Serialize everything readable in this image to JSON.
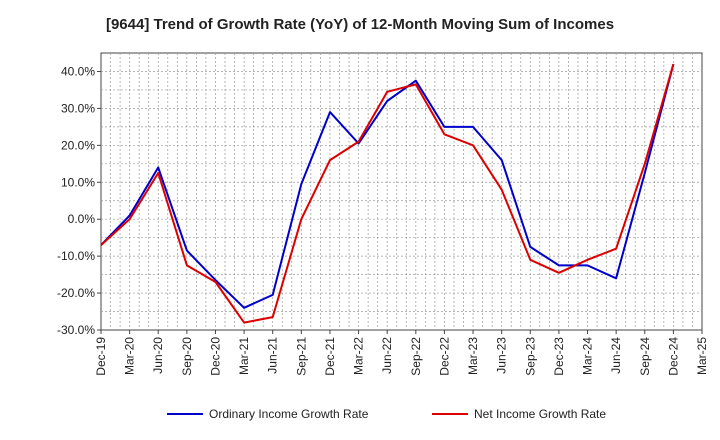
{
  "chart_data": {
    "type": "line",
    "title": "[9644]  Trend of Growth Rate (YoY) of 12-Month Moving Sum of Incomes",
    "xlabel": "",
    "ylabel": "",
    "ylim": [
      -30,
      45
    ],
    "y_ticks": [
      "40.0%",
      "30.0%",
      "20.0%",
      "10.0%",
      "0.0%",
      "-10.0%",
      "-20.0%",
      "-30.0%"
    ],
    "y_tick_values": [
      40,
      30,
      20,
      10,
      0,
      -10,
      -20,
      -30
    ],
    "x_tick_labels": [
      "Dec-19",
      "Mar-20",
      "Jun-20",
      "Sep-20",
      "Dec-20",
      "Mar-21",
      "Jun-21",
      "Sep-21",
      "Dec-21",
      "Mar-22",
      "Jun-22",
      "Sep-22",
      "Dec-22",
      "Mar-23",
      "Jun-23",
      "Sep-23",
      "Dec-23",
      "Mar-24",
      "Jun-24",
      "Sep-24",
      "Dec-24",
      "Mar-25"
    ],
    "grid": true,
    "legend_position": "bottom",
    "series": [
      {
        "name": "Ordinary Income Growth Rate",
        "color": "#0000cc",
        "values": [
          -7.0,
          1.0,
          14.0,
          -8.5,
          -16.5,
          -24.0,
          -20.5,
          9.5,
          29.0,
          20.5,
          32.0,
          37.5,
          25.0,
          25.0,
          16.0,
          -7.5,
          -12.5,
          -12.5,
          -16.0,
          12.5,
          42.0,
          null
        ]
      },
      {
        "name": "Net Income Growth Rate",
        "color": "#dd0000",
        "values": [
          -7.0,
          0.0,
          12.5,
          -12.5,
          -17.0,
          -28.0,
          -26.5,
          0.0,
          16.0,
          21.0,
          34.5,
          36.5,
          23.0,
          20.0,
          8.0,
          -11.0,
          -14.5,
          -11.0,
          -8.0,
          15.0,
          42.0,
          null
        ]
      }
    ]
  }
}
